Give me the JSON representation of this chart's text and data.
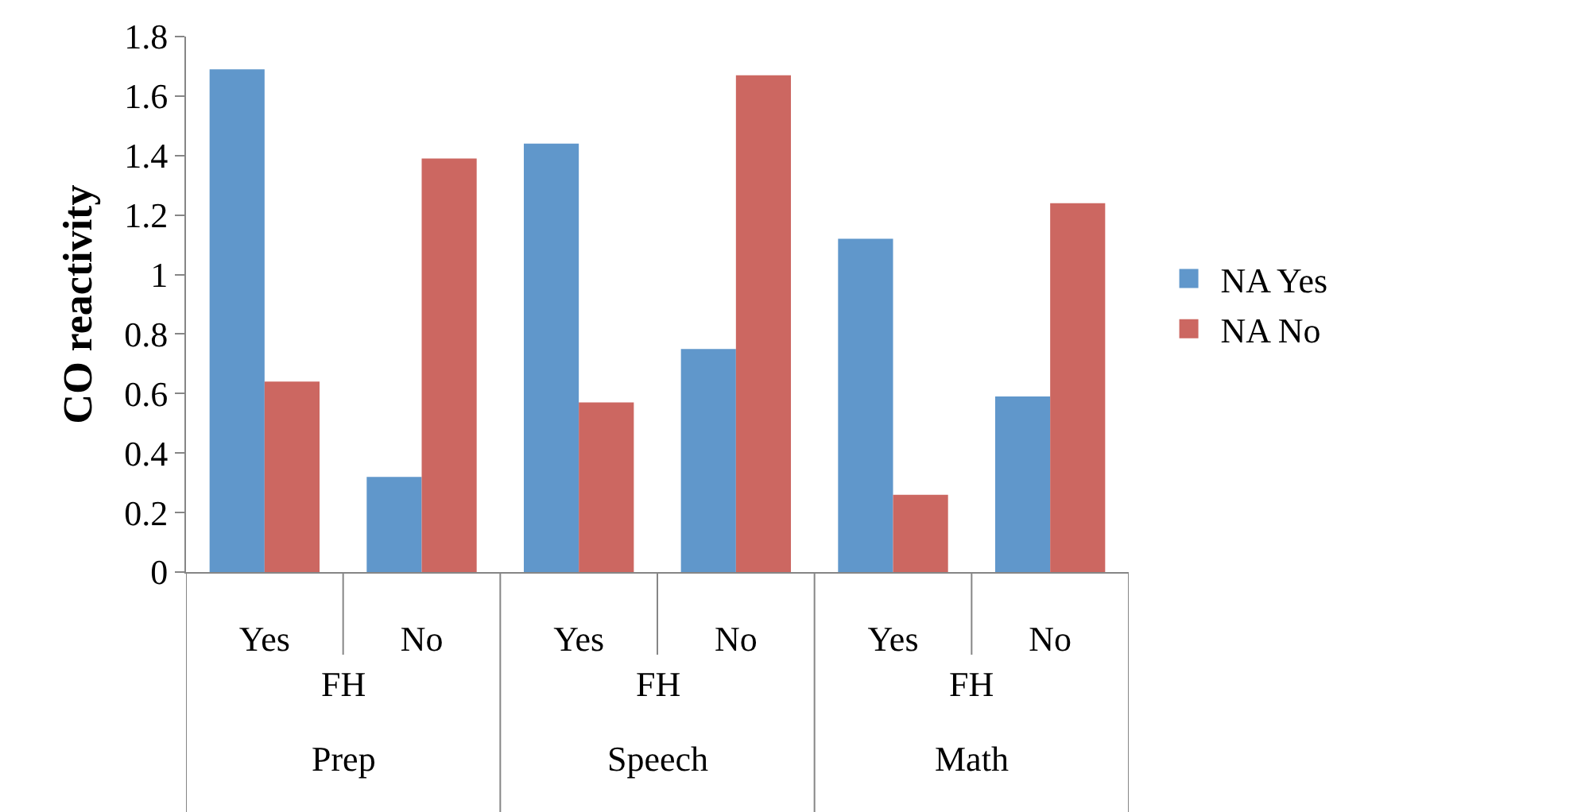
{
  "chart_data": {
    "type": "bar",
    "ylabel": "CO reactivity",
    "categories": [
      "Yes",
      "No",
      "Yes",
      "No",
      "Yes",
      "No"
    ],
    "series": [
      {
        "name": "NA Yes",
        "color": "#6097cb",
        "values": [
          1.69,
          0.32,
          1.44,
          0.75,
          1.12,
          0.59
        ]
      },
      {
        "name": "NA No",
        "color": "#cc6761",
        "values": [
          0.64,
          1.39,
          0.57,
          1.67,
          0.26,
          1.24
        ]
      }
    ],
    "annotations": [
      "FH",
      "FH",
      "FH",
      "Prep",
      "Speech",
      "Math"
    ],
    "ylim": [
      0,
      1.8
    ],
    "yticks": [
      0,
      0.2,
      0.4,
      0.6,
      0.8,
      1,
      1.2,
      1.4,
      1.6,
      1.8
    ],
    "grid": false,
    "legend": "right"
  }
}
